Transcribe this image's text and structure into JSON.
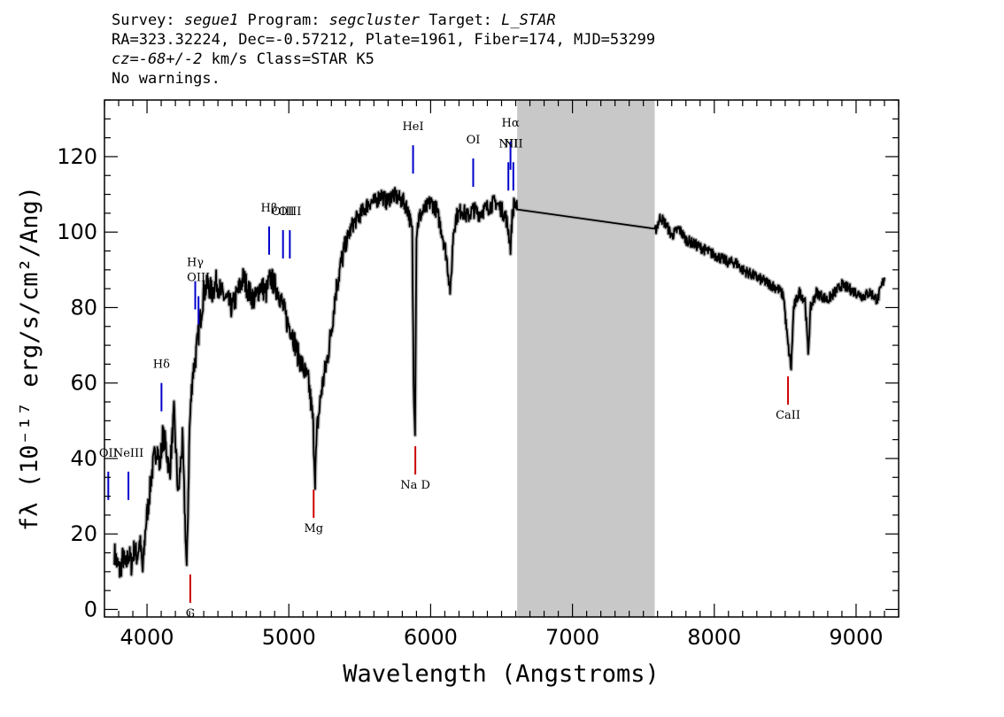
{
  "header": {
    "line1": {
      "survey_prefix": "Survey: ",
      "survey": "segue1",
      "program_prefix": " Program: ",
      "program": "segcluster",
      "target_prefix": " Target: ",
      "target": "L_STAR"
    },
    "line2": "RA=323.32224, Dec=-0.57212, Plate=1961, Fiber=174, MJD=53299",
    "line3": {
      "cz": "cz=-68+/-2",
      "rest": " km/s Class=STAR K5"
    },
    "line4": "No warnings."
  },
  "chart_data": {
    "type": "line",
    "xlabel": "Wavelength (Angstroms)",
    "ylabel": "fλ (10⁻¹⁷ erg/s/cm²/Ang)",
    "xlim": [
      3700,
      9300
    ],
    "ylim": [
      -2,
      135
    ],
    "x_ticks": [
      4000,
      5000,
      6000,
      7000,
      8000,
      9000
    ],
    "y_ticks": [
      0,
      20,
      40,
      60,
      80,
      100,
      120
    ],
    "masked_region": [
      6610,
      7580
    ],
    "masked_color": "#c8c8c8",
    "line_color": "#000000",
    "error_color": "#b4b4b4",
    "series": [
      {
        "x": [
          3770,
          3790,
          3810,
          3830,
          3850,
          3870,
          3890,
          3910,
          3930,
          3950,
          3970,
          3990,
          4010,
          4030,
          4050,
          4070,
          4090,
          4110,
          4130,
          4160,
          4190,
          4220,
          4250,
          4280,
          4300,
          4320,
          4340,
          4370,
          4400,
          4430,
          4460,
          4490,
          4520,
          4560,
          4600,
          4640,
          4680,
          4720,
          4760,
          4800,
          4840,
          4870,
          4900,
          4930,
          4960,
          4990,
          5020,
          5060,
          5100,
          5140,
          5170,
          5185,
          5200,
          5230,
          5270,
          5300,
          5330,
          5370,
          5410,
          5450,
          5490,
          5530,
          5570,
          5610,
          5650,
          5690,
          5730,
          5770,
          5810,
          5840,
          5870,
          5880,
          5890,
          5900,
          5920,
          5960,
          6000,
          6040,
          6080,
          6110,
          6140,
          6160,
          6180,
          6220,
          6260,
          6300,
          6340,
          6380,
          6420,
          6460,
          6500,
          6530,
          6550,
          6563,
          6575,
          6590,
          6610,
          7580,
          7620,
          7660,
          7700,
          7750,
          7800,
          7850,
          7900,
          7950,
          8000,
          8050,
          8100,
          8150,
          8200,
          8250,
          8300,
          8350,
          8400,
          8450,
          8490,
          8500,
          8520,
          8542,
          8560,
          8600,
          8640,
          8662,
          8680,
          8720,
          8760,
          8800,
          8850,
          8900,
          8950,
          9000,
          9050,
          9100,
          9150,
          9200
        ],
        "y": [
          15,
          12,
          10,
          14,
          11,
          15,
          12,
          16,
          14,
          18,
          10,
          22,
          28,
          35,
          40,
          43,
          38,
          46,
          44,
          36,
          52,
          30,
          45,
          10,
          48,
          62,
          66,
          75,
          84,
          86,
          84,
          87,
          84,
          82,
          80,
          84,
          88,
          84,
          82,
          86,
          84,
          88,
          86,
          84,
          80,
          76,
          74,
          68,
          64,
          60,
          50,
          35,
          48,
          58,
          66,
          74,
          84,
          92,
          98,
          102,
          104,
          106,
          108,
          108,
          110,
          108,
          110,
          109,
          108,
          106,
          100,
          60,
          48,
          100,
          104,
          106,
          108,
          106,
          100,
          94,
          84,
          100,
          104,
          106,
          104,
          106,
          105,
          106,
          107,
          108,
          106,
          104,
          100,
          96,
          104,
          108,
          106,
          100,
          104,
          102,
          99,
          101,
          98,
          97,
          96,
          95,
          94,
          93,
          92,
          92,
          90,
          89,
          88,
          87,
          86,
          85,
          83,
          78,
          70,
          64,
          80,
          84,
          82,
          68,
          80,
          84,
          83,
          82,
          84,
          86,
          85,
          84,
          83,
          84,
          82,
          88
        ]
      }
    ],
    "lines": [
      {
        "label": "OII",
        "x": 3727,
        "color": "blue",
        "label_y": 40.5
      },
      {
        "label": "NeIII",
        "x": 3869,
        "color": "blue",
        "label_y": 40.5
      },
      {
        "label": "Hδ",
        "x": 4102,
        "color": "blue",
        "label_y": 64
      },
      {
        "label": "Hγ",
        "x": 4340,
        "color": "blue",
        "label_y": 91
      },
      {
        "label": "OIII",
        "x": 4363,
        "color": "blue",
        "label_y": 87
      },
      {
        "label": "Hβ",
        "x": 4861,
        "color": "blue",
        "label_y": 105.5
      },
      {
        "label": "OIII",
        "x": 4959,
        "color": "blue",
        "label_y": 104.5
      },
      {
        "label": "OIII",
        "x": 5007,
        "color": "blue",
        "label_y": 104.5
      },
      {
        "label": "HeI",
        "x": 5876,
        "color": "blue",
        "label_y": 127
      },
      {
        "label": "OI",
        "x": 6300,
        "color": "blue",
        "label_y": 123.5
      },
      {
        "label": "NII",
        "x": 6548,
        "color": "blue",
        "label_y": 122.5
      },
      {
        "label": "Hα",
        "x": 6563,
        "color": "blue",
        "label_y": 128
      },
      {
        "label": "NII",
        "x": 6583,
        "color": "blue",
        "label_y": 122.5
      },
      {
        "label": "Na D",
        "x": 5892,
        "color": "red",
        "label_y": 32
      },
      {
        "label": "Mg",
        "x": 5175,
        "color": "red",
        "label_y": 20.5
      },
      {
        "label": "G",
        "x": 4305,
        "color": "red",
        "label_y": -2
      },
      {
        "label": "CaII",
        "x": 8520,
        "color": "red",
        "label_y": 50.5
      }
    ]
  }
}
